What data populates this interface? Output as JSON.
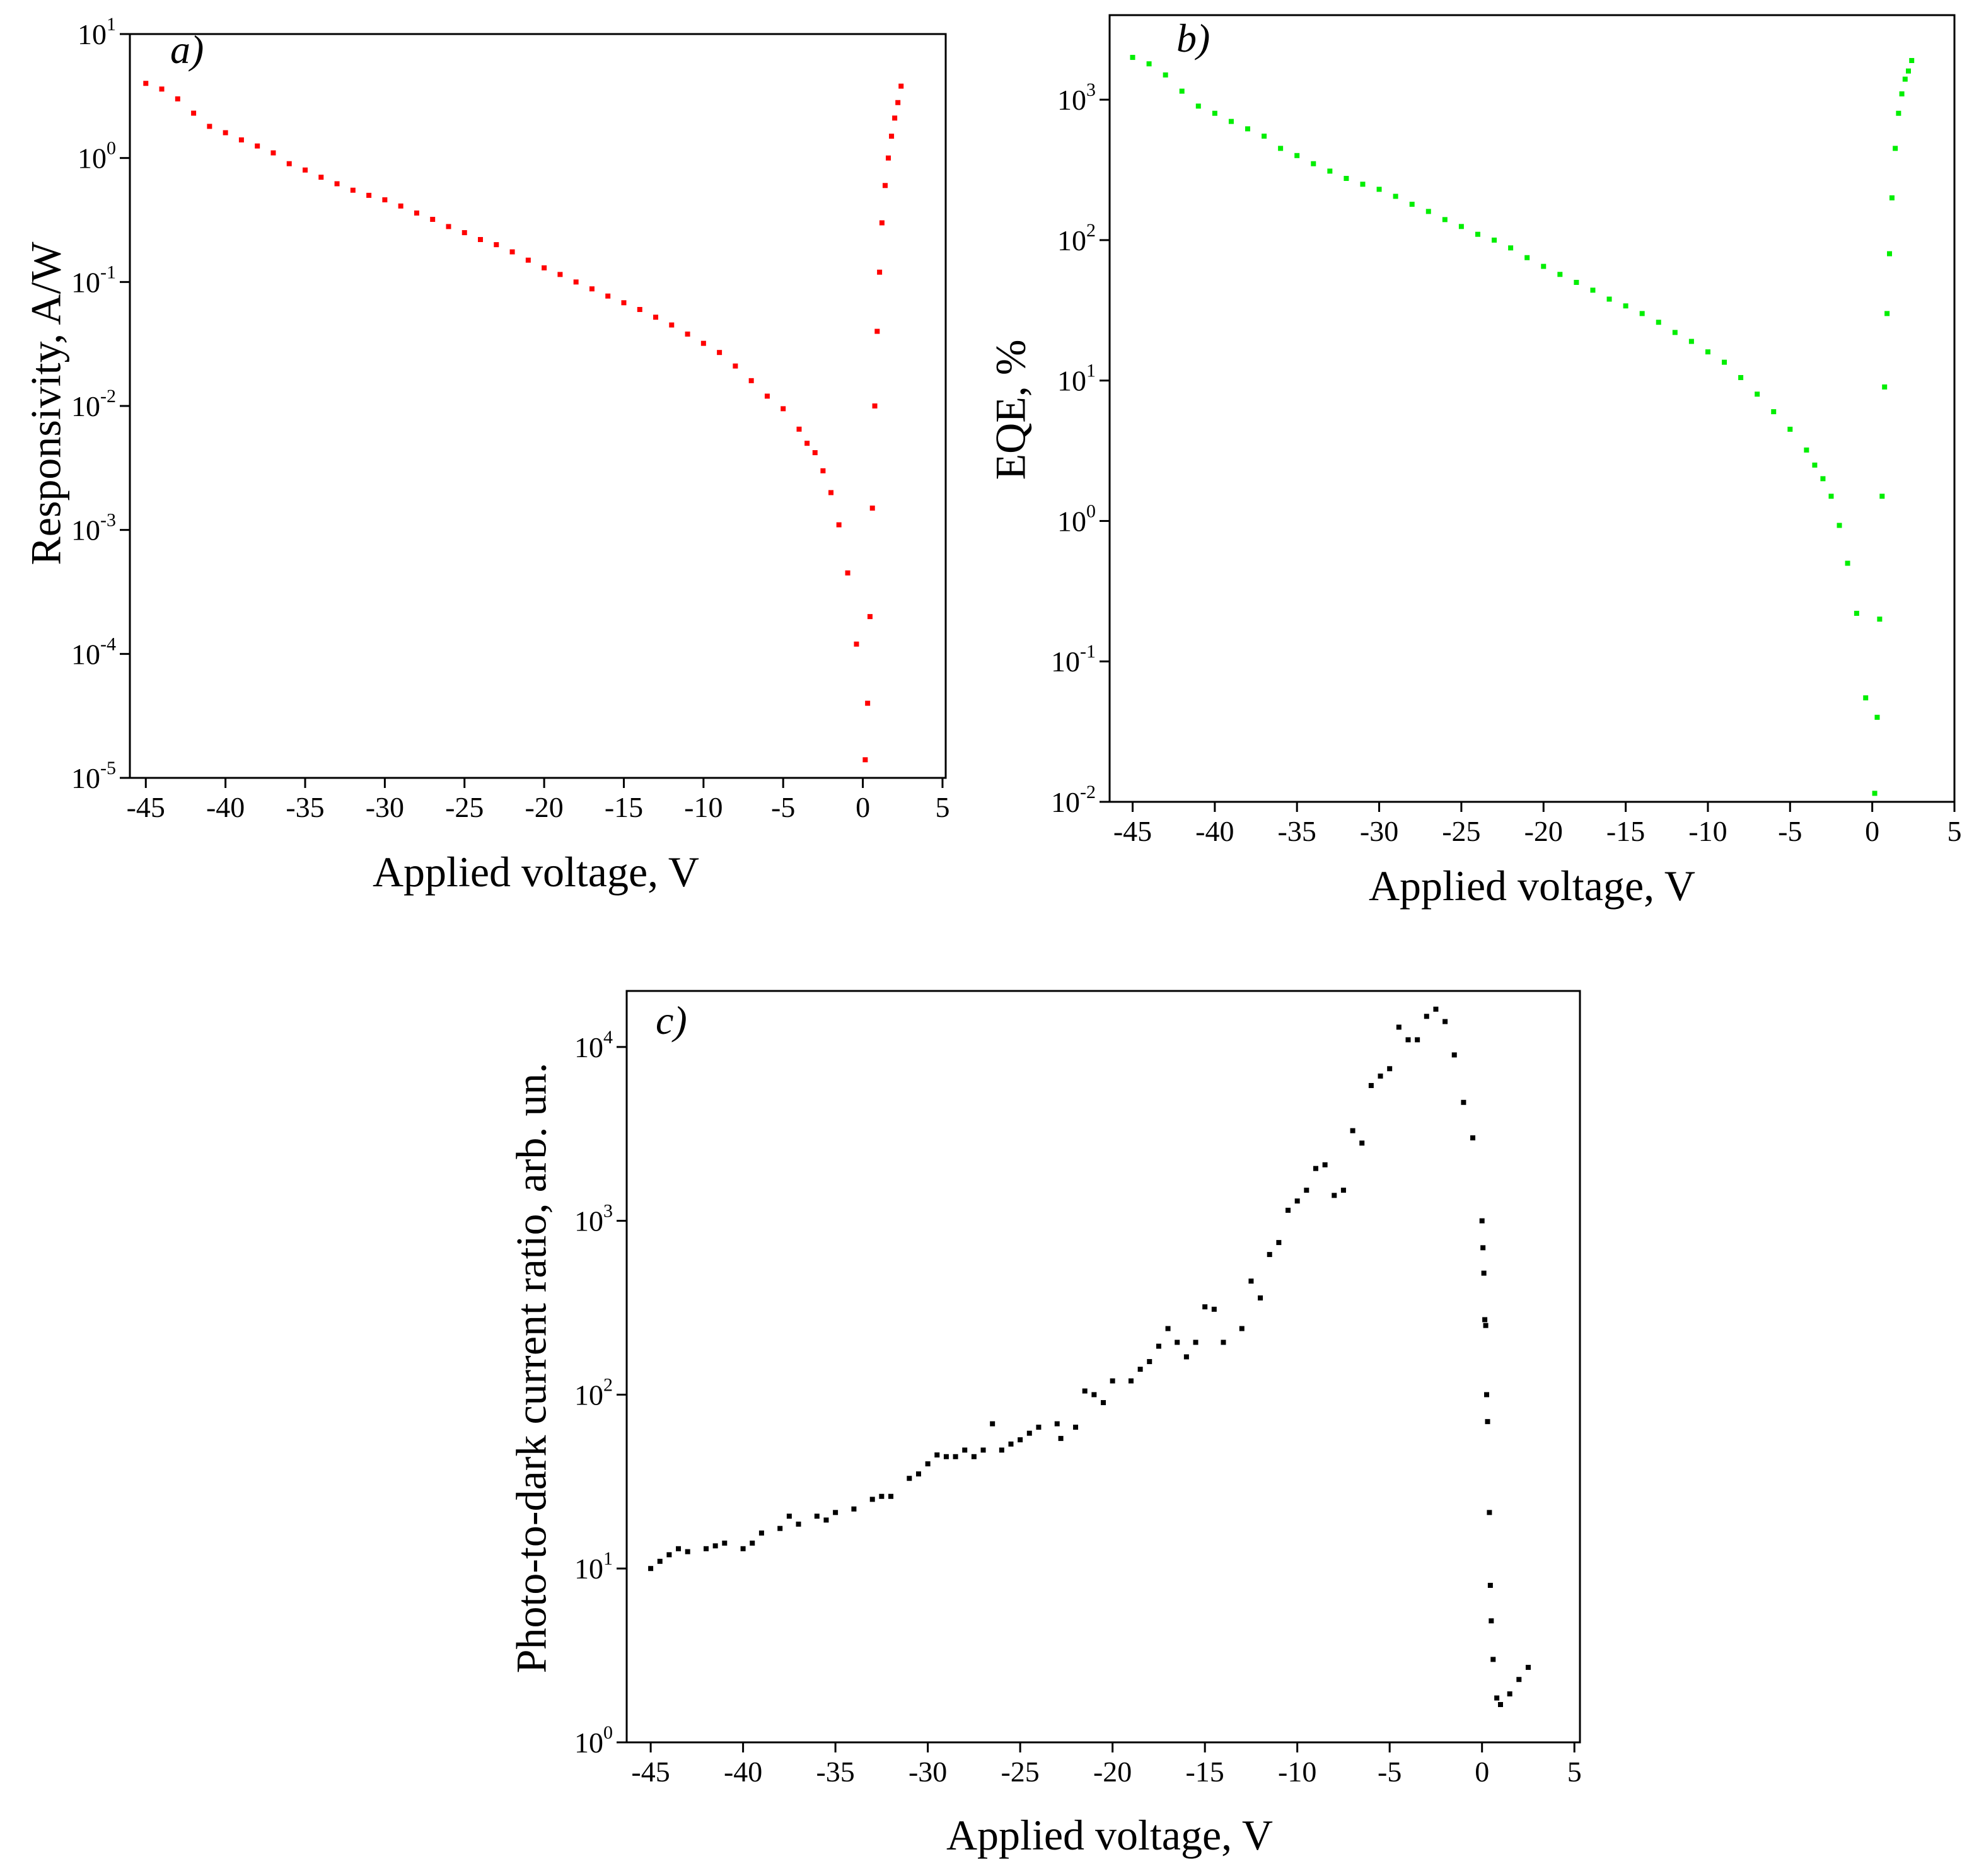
{
  "chart_data": [
    {
      "type": "scatter",
      "annotation": "a)",
      "xlabel": "Applied voltage, V",
      "ylabel": "Responsivity, A/W",
      "color": "#ff0000",
      "log_y": true,
      "xlim": [
        -46,
        5.2
      ],
      "ylim": [
        1e-05,
        10
      ],
      "xticks": [
        -45,
        -40,
        -35,
        -30,
        -25,
        -20,
        -15,
        -10,
        -5,
        0,
        5
      ],
      "yticks": [
        {
          "value": 1e-05,
          "label": "10^-5"
        },
        {
          "value": 0.0001,
          "label": "10^-4"
        },
        {
          "value": 0.001,
          "label": "10^-3"
        },
        {
          "value": 0.01,
          "label": "10^-2"
        },
        {
          "value": 0.1,
          "label": "10^-1"
        },
        {
          "value": 1,
          "label": "10^0"
        },
        {
          "value": 10,
          "label": "10^1"
        }
      ],
      "x": [
        -45,
        -44,
        -43,
        -42,
        -41,
        -40,
        -39,
        -38,
        -37,
        -36,
        -35,
        -34,
        -33,
        -32,
        -31,
        -30,
        -29,
        -28,
        -27,
        -26,
        -25,
        -24,
        -23,
        -22,
        -21,
        -20,
        -19,
        -18,
        -17,
        -16,
        -15,
        -14,
        -13,
        -12,
        -11,
        -10,
        -9,
        -8,
        -7,
        -6,
        -5,
        -4,
        -3.5,
        -3,
        -2.5,
        -2,
        -1.5,
        -0.95,
        -0.4,
        0.15,
        0.3,
        0.45,
        0.6,
        0.75,
        0.9,
        1.05,
        1.2,
        1.4,
        1.6,
        1.8,
        2.0,
        2.2,
        2.4
      ],
      "values": [
        4,
        3.6,
        3.0,
        2.3,
        1.8,
        1.6,
        1.4,
        1.25,
        1.1,
        0.9,
        0.8,
        0.7,
        0.62,
        0.55,
        0.5,
        0.46,
        0.41,
        0.36,
        0.32,
        0.28,
        0.25,
        0.22,
        0.2,
        0.175,
        0.15,
        0.13,
        0.115,
        0.1,
        0.088,
        0.077,
        0.068,
        0.06,
        0.052,
        0.045,
        0.038,
        0.032,
        0.027,
        0.021,
        0.016,
        0.012,
        0.0095,
        0.0065,
        0.005,
        0.0042,
        0.003,
        0.002,
        0.0011,
        0.00045,
        0.00012,
        1.4e-05,
        4e-05,
        0.0002,
        0.0015,
        0.01,
        0.04,
        0.12,
        0.3,
        0.6,
        1.0,
        1.5,
        2.1,
        2.8,
        3.8
      ]
    },
    {
      "type": "scatter",
      "annotation": "b)",
      "xlabel": "Applied voltage, V",
      "ylabel": "EQE, %",
      "color": "#00ee00",
      "log_y": true,
      "xlim": [
        -46.4,
        5
      ],
      "ylim": [
        0.01,
        4000
      ],
      "xticks": [
        -45,
        -40,
        -35,
        -30,
        -25,
        -20,
        -15,
        -10,
        -5,
        0,
        5
      ],
      "yticks": [
        {
          "value": 0.01,
          "label": "10^-2"
        },
        {
          "value": 0.1,
          "label": "10^-1"
        },
        {
          "value": 1,
          "label": "10^0"
        },
        {
          "value": 10,
          "label": "10^1"
        },
        {
          "value": 100,
          "label": "10^2"
        },
        {
          "value": 1000,
          "label": "10^3"
        }
      ],
      "x": [
        -45,
        -44,
        -43,
        -42,
        -41,
        -40,
        -39,
        -38,
        -37,
        -36,
        -35,
        -34,
        -33,
        -32,
        -31,
        -30,
        -29,
        -28,
        -27,
        -26,
        -25,
        -24,
        -23,
        -22,
        -21,
        -20,
        -19,
        -18,
        -17,
        -16,
        -15,
        -14,
        -13,
        -12,
        -11,
        -10,
        -9,
        -8,
        -7,
        -6,
        -5,
        -4,
        -3.5,
        -3,
        -2.5,
        -2,
        -1.5,
        -0.95,
        -0.4,
        0.15,
        0.3,
        0.45,
        0.6,
        0.75,
        0.9,
        1.05,
        1.2,
        1.4,
        1.6,
        1.8,
        2.0,
        2.2,
        2.4
      ],
      "values": [
        2000,
        1800,
        1500,
        1150,
        900,
        800,
        700,
        620,
        550,
        450,
        400,
        350,
        310,
        275,
        250,
        230,
        205,
        180,
        160,
        140,
        125,
        110,
        100,
        88,
        75,
        65,
        57,
        50,
        44,
        38,
        34,
        30,
        26,
        22,
        19,
        16,
        13.5,
        10.5,
        8,
        6,
        4.5,
        3.2,
        2.5,
        2.0,
        1.5,
        0.93,
        0.5,
        0.22,
        0.055,
        0.0115,
        0.04,
        0.2,
        1.5,
        9,
        30,
        80,
        200,
        450,
        800,
        1100,
        1400,
        1600,
        1900
      ]
    },
    {
      "type": "scatter",
      "annotation": "c)",
      "xlabel": "Applied voltage, V",
      "ylabel": "Photo-to-dark current ratio, arb. un.",
      "color": "#000000",
      "log_y": true,
      "xlim": [
        -46.3,
        5.3
      ],
      "ylim": [
        1,
        21000
      ],
      "xticks": [
        -45,
        -40,
        -35,
        -30,
        -25,
        -20,
        -15,
        -10,
        -5,
        0,
        5
      ],
      "yticks": [
        {
          "value": 1,
          "label": "10^0"
        },
        {
          "value": 10,
          "label": "10^1"
        },
        {
          "value": 100,
          "label": "10^2"
        },
        {
          "value": 1000,
          "label": "10^3"
        },
        {
          "value": 10000,
          "label": "10^4"
        }
      ],
      "x": [
        -45,
        -44.5,
        -44,
        -43.5,
        -43,
        -42,
        -41.5,
        -41,
        -40,
        -39.5,
        -39,
        -38,
        -37.5,
        -37,
        -36,
        -35.5,
        -35,
        -34,
        -33,
        -32.5,
        -32,
        -31,
        -30.5,
        -30,
        -29.5,
        -29,
        -28.5,
        -28,
        -27.5,
        -27,
        -26.5,
        -26,
        -25.5,
        -25,
        -24.5,
        -24,
        -23,
        -22.8,
        -22,
        -21.5,
        -21,
        -20.5,
        -20,
        -19,
        -18.5,
        -18,
        -17.5,
        -17,
        -16.5,
        -16,
        -15.5,
        -15,
        -14.5,
        -14,
        -13,
        -12.5,
        -12,
        -11.5,
        -11,
        -10.5,
        -10,
        -9.5,
        -9,
        -8.5,
        -8,
        -7.5,
        -7,
        -6.5,
        -6,
        -5.5,
        -5,
        -4.5,
        -4,
        -3.5,
        -3,
        -2.5,
        -2,
        -1.5,
        -1,
        -0.5,
        0,
        0.05,
        0.1,
        0.15,
        0.2,
        0.25,
        0.3,
        0.4,
        0.45,
        0.5,
        0.6,
        0.8,
        1,
        1.5,
        2,
        2.5
      ],
      "values": [
        10,
        11,
        12,
        13,
        12.5,
        13,
        13.5,
        14,
        13,
        14,
        16,
        17,
        20,
        18,
        20,
        19,
        21,
        22,
        25,
        26,
        26,
        33,
        35,
        40,
        45,
        44,
        44,
        48,
        44,
        48,
        68,
        48,
        52,
        55,
        60,
        65,
        68,
        56,
        65,
        105,
        100,
        90,
        120,
        120,
        140,
        155,
        190,
        240,
        200,
        165,
        200,
        320,
        310,
        200,
        240,
        450,
        360,
        640,
        750,
        1150,
        1300,
        1500,
        2000,
        2100,
        1400,
        1500,
        3300,
        2800,
        6000,
        6800,
        7500,
        13000,
        11000,
        11000,
        15000,
        16500,
        14000,
        9000,
        4800,
        3000,
        1000,
        700,
        500,
        270,
        250,
        100,
        70,
        21,
        8,
        5,
        3,
        1.8,
        1.65,
        1.9,
        2.3,
        2.7
      ]
    }
  ]
}
